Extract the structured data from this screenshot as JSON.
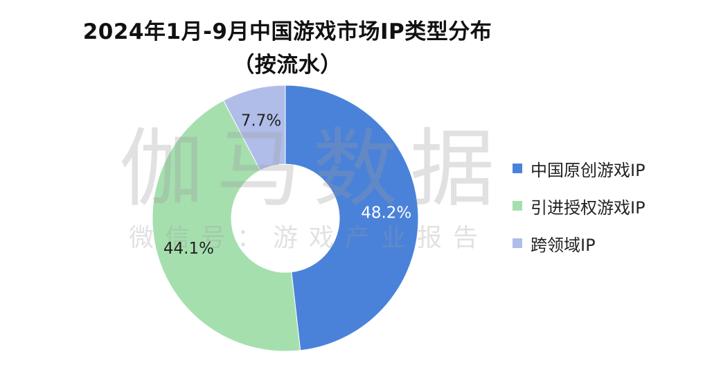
{
  "chart_data": {
    "type": "pie",
    "variant": "donut",
    "title": "2024年1月-9月中国游戏市场IP类型分布",
    "subtitle": "（按流水）",
    "categories": [
      "中国原创游戏IP",
      "引进授权游戏IP",
      "跨领域IP"
    ],
    "values": [
      48.2,
      44.1,
      7.7
    ],
    "value_labels": [
      "48.2%",
      "44.1%",
      "7.7%"
    ],
    "colors": [
      "#4a82d9",
      "#a5dfae",
      "#b0bde8"
    ],
    "label_colors": [
      "#ffffff",
      "#222222",
      "#222222"
    ],
    "legend_position": "right"
  },
  "watermark": {
    "main": "伽马数据",
    "sub": "微信号：游戏产业报告"
  }
}
